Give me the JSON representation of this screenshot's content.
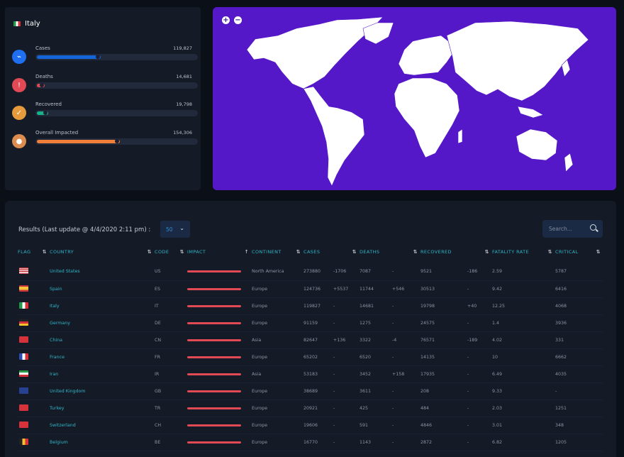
{
  "country_card": {
    "flag": "italy-flag-icon",
    "title": "Italy",
    "stats": [
      {
        "label": "Cases",
        "value": "119,827",
        "fill": 0.4,
        "color": "#1565d8",
        "icon": "activity-icon",
        "icon_color": "#1f6ff0"
      },
      {
        "label": "Deaths",
        "value": "14,681",
        "fill": 0.05,
        "color": "#e14a55",
        "icon": "alert-circle-icon",
        "icon_color": "#e14a55"
      },
      {
        "label": "Recovered",
        "value": "19,798",
        "fill": 0.07,
        "color": "#19b38a",
        "icon": "check-icon",
        "icon_color": "#e59a3b"
      },
      {
        "label": "Overall Impacted",
        "value": "154,306",
        "fill": 0.52,
        "color": "#f07f3a",
        "icon": "users-icon",
        "icon_color": "#dc8c4e"
      }
    ]
  },
  "map": {
    "zoom_in": "+",
    "zoom_out": "−",
    "bg": "#5518c9"
  },
  "table_card": {
    "results_label": "Results (Last update @ 4/4/2020 2:11 pm) :",
    "rows_per_page": "50",
    "search_placeholder": "Search...",
    "columns": [
      "FLAG",
      "COUNTRY",
      "CODE",
      "IMPACT",
      "CONTINENT",
      "CASES",
      "DEATHS",
      "RECOVERED",
      "FATALITY RATE",
      "CRITICAL"
    ],
    "rows": [
      {
        "flag": "us",
        "country": "United States",
        "code": "US",
        "continent": "North America",
        "cases": "273880",
        "cases_delta": "-1706",
        "deaths": "7087",
        "deaths_delta": "-",
        "recovered": "9521",
        "recovered_delta": "-186",
        "fatality": "2.59",
        "critical": "5787"
      },
      {
        "flag": "es",
        "country": "Spain",
        "code": "ES",
        "continent": "Europe",
        "cases": "124736",
        "cases_delta": "+5537",
        "deaths": "11744",
        "deaths_delta": "+546",
        "recovered": "30513",
        "recovered_delta": "-",
        "fatality": "9.42",
        "critical": "6416"
      },
      {
        "flag": "it",
        "country": "Italy",
        "code": "IT",
        "continent": "Europe",
        "cases": "119827",
        "cases_delta": "-",
        "deaths": "14681",
        "deaths_delta": "-",
        "recovered": "19798",
        "recovered_delta": "+40",
        "fatality": "12.25",
        "critical": "4068"
      },
      {
        "flag": "de",
        "country": "Germany",
        "code": "DE",
        "continent": "Europe",
        "cases": "91159",
        "cases_delta": "-",
        "deaths": "1275",
        "deaths_delta": "-",
        "recovered": "24575",
        "recovered_delta": "-",
        "fatality": "1.4",
        "critical": "3936"
      },
      {
        "flag": "cn",
        "country": "China",
        "code": "CN",
        "continent": "Asia",
        "cases": "82647",
        "cases_delta": "+136",
        "deaths": "3322",
        "deaths_delta": "-4",
        "recovered": "76571",
        "recovered_delta": "-189",
        "fatality": "4.02",
        "critical": "331"
      },
      {
        "flag": "fr",
        "country": "France",
        "code": "FR",
        "continent": "Europe",
        "cases": "65202",
        "cases_delta": "-",
        "deaths": "6520",
        "deaths_delta": "-",
        "recovered": "14135",
        "recovered_delta": "-",
        "fatality": "10",
        "critical": "6662"
      },
      {
        "flag": "ir",
        "country": "Iran",
        "code": "IR",
        "continent": "Asia",
        "cases": "53183",
        "cases_delta": "-",
        "deaths": "3452",
        "deaths_delta": "+158",
        "recovered": "17935",
        "recovered_delta": "-",
        "fatality": "6.49",
        "critical": "4035"
      },
      {
        "flag": "gb",
        "country": "United Kingdom",
        "code": "GB",
        "continent": "Europe",
        "cases": "38689",
        "cases_delta": "-",
        "deaths": "3611",
        "deaths_delta": "-",
        "recovered": "208",
        "recovered_delta": "-",
        "fatality": "9.33",
        "critical": "-"
      },
      {
        "flag": "tr",
        "country": "Turkey",
        "code": "TR",
        "continent": "Europe",
        "cases": "20921",
        "cases_delta": "-",
        "deaths": "425",
        "deaths_delta": "-",
        "recovered": "484",
        "recovered_delta": "-",
        "fatality": "2.03",
        "critical": "1251"
      },
      {
        "flag": "ch",
        "country": "Switzerland",
        "code": "CH",
        "continent": "Europe",
        "cases": "19606",
        "cases_delta": "-",
        "deaths": "591",
        "deaths_delta": "-",
        "recovered": "4846",
        "recovered_delta": "-",
        "fatality": "3.01",
        "critical": "348"
      },
      {
        "flag": "be",
        "country": "Belgium",
        "code": "BE",
        "continent": "Europe",
        "cases": "16770",
        "cases_delta": "-",
        "deaths": "1143",
        "deaths_delta": "-",
        "recovered": "2872",
        "recovered_delta": "-",
        "fatality": "6.82",
        "critical": "1205"
      }
    ]
  }
}
